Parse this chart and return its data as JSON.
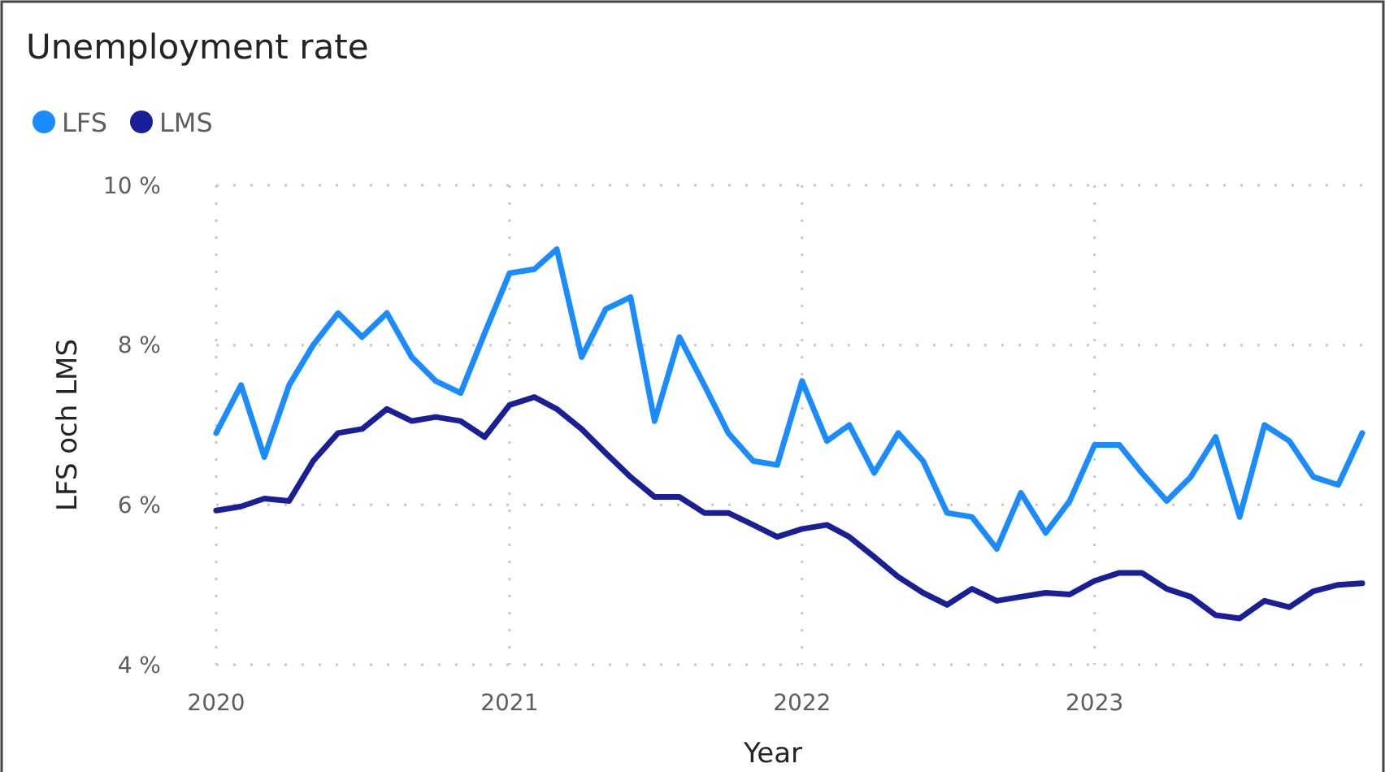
{
  "chart_data": {
    "type": "line",
    "title": "Unemployment rate",
    "xlabel": "Year",
    "ylabel": "LFS och LMS",
    "x": [
      "2020-01",
      "2020-02",
      "2020-03",
      "2020-04",
      "2020-05",
      "2020-06",
      "2020-07",
      "2020-08",
      "2020-09",
      "2020-10",
      "2020-11",
      "2020-12",
      "2021-01",
      "2021-02",
      "2021-03",
      "2021-04",
      "2021-05",
      "2021-06",
      "2021-07",
      "2021-08",
      "2021-09",
      "2021-10",
      "2021-11",
      "2021-12",
      "2022-01",
      "2022-02",
      "2022-03",
      "2022-04",
      "2022-05",
      "2022-06",
      "2022-07",
      "2022-08",
      "2022-09",
      "2022-10",
      "2022-11",
      "2022-12",
      "2023-01",
      "2023-02",
      "2023-03",
      "2023-04",
      "2023-05",
      "2023-06",
      "2023-07",
      "2023-08",
      "2023-09",
      "2023-10",
      "2023-11",
      "2023-12"
    ],
    "series": [
      {
        "name": "LFS",
        "color": "#1a8cff",
        "values": [
          6.9,
          7.5,
          6.6,
          7.5,
          8.0,
          8.4,
          8.1,
          8.4,
          7.85,
          7.55,
          7.4,
          8.15,
          8.9,
          8.95,
          9.2,
          7.85,
          8.45,
          8.6,
          7.05,
          8.1,
          7.5,
          6.9,
          6.55,
          6.5,
          7.55,
          6.8,
          7.0,
          6.4,
          6.9,
          6.55,
          5.9,
          5.85,
          5.45,
          6.15,
          5.65,
          6.05,
          6.75,
          6.75,
          6.4,
          6.05,
          6.35,
          6.85,
          5.85,
          7.0,
          6.8,
          6.35,
          6.25,
          6.9
        ]
      },
      {
        "name": "LMS",
        "color": "#1a1f96",
        "values": [
          5.93,
          5.98,
          6.08,
          6.05,
          6.55,
          6.9,
          6.95,
          7.2,
          7.05,
          7.1,
          7.05,
          6.85,
          7.25,
          7.35,
          7.2,
          6.95,
          6.65,
          6.35,
          6.1,
          6.1,
          5.9,
          5.9,
          5.75,
          5.6,
          5.7,
          5.75,
          5.6,
          5.35,
          5.1,
          4.9,
          4.75,
          4.95,
          4.8,
          4.85,
          4.9,
          4.88,
          5.05,
          5.15,
          5.15,
          4.95,
          4.85,
          4.62,
          4.58,
          4.8,
          4.72,
          4.92,
          5.0,
          5.02
        ]
      }
    ],
    "xlim": [
      "2020-01",
      "2023-12"
    ],
    "xticks": [
      "2020",
      "2021",
      "2022",
      "2023"
    ],
    "ylim": [
      4,
      10
    ],
    "yticks": [
      {
        "value": 4,
        "label": "4 %"
      },
      {
        "value": 6,
        "label": "6 %"
      },
      {
        "value": 8,
        "label": "8 %"
      },
      {
        "value": 10,
        "label": "10 %"
      }
    ],
    "grid": true,
    "legend": "top left",
    "line_style": "solid",
    "marker": "none"
  }
}
